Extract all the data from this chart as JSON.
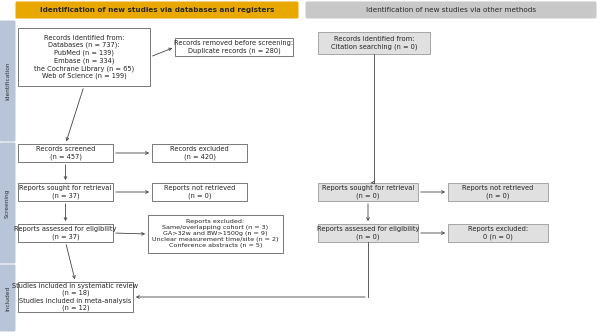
{
  "fig_width": 6.0,
  "fig_height": 3.36,
  "bg_color": "#ffffff",
  "header_left_text": "Identification of new studies via databases and registers",
  "header_right_text": "Identification of new studies via other methods",
  "header_left_color": "#E8A800",
  "header_right_color": "#C8C8C8",
  "sidebar_labels": [
    "Identification",
    "Screening",
    "Included"
  ],
  "sidebar_color": "#B8C4D8",
  "box_left_1": "Records identified from:\nDatabases (n = 737):\nPubMed (n = 139)\nEmbase (n = 334)\nthe Cochrane Library (n = 65)\nWeb of Science (n = 199)",
  "box_left_2": "Records screened\n(n = 457)",
  "box_left_3": "Reports sought for retrieval\n(n = 37)",
  "box_left_4": "Reports assessed for eligibility\n(n = 37)",
  "box_left_5": "Studies included in systematic review\n(n = 18)\nStudies included in meta-analysis\n(n = 12)",
  "box_mid_1": "Records removed before screening:\nDuplicate records (n = 280)",
  "box_mid_2": "Records excluded\n(n = 420)",
  "box_mid_3": "Reports not retrieved\n(n = 0)",
  "box_mid_4": "Reports excluded:\nSame/overlapping cohort (n = 3)\nGA>32w and BW>1500g (n = 9)\nUnclear measurement time/site (n = 2)\nConference abstracts (n = 5)",
  "box_right_1": "Records identified from:\nCitation searching (n = 0)",
  "box_right_2": "Reports sought for retrieval\n(n = 0)",
  "box_right_3": "Reports assessed for eligibility\n(n = 0)",
  "box_right_4": "Reports not retrieved\n(n = 0)",
  "box_right_5": "Reports excluded:\n0 (n = 0)",
  "box_color_white": "#FFFFFF",
  "box_color_gray": "#E0E0E0",
  "box_border_dark": "#444444",
  "box_border_gray": "#888888",
  "arrow_color": "#444444",
  "line_color": "#444444"
}
